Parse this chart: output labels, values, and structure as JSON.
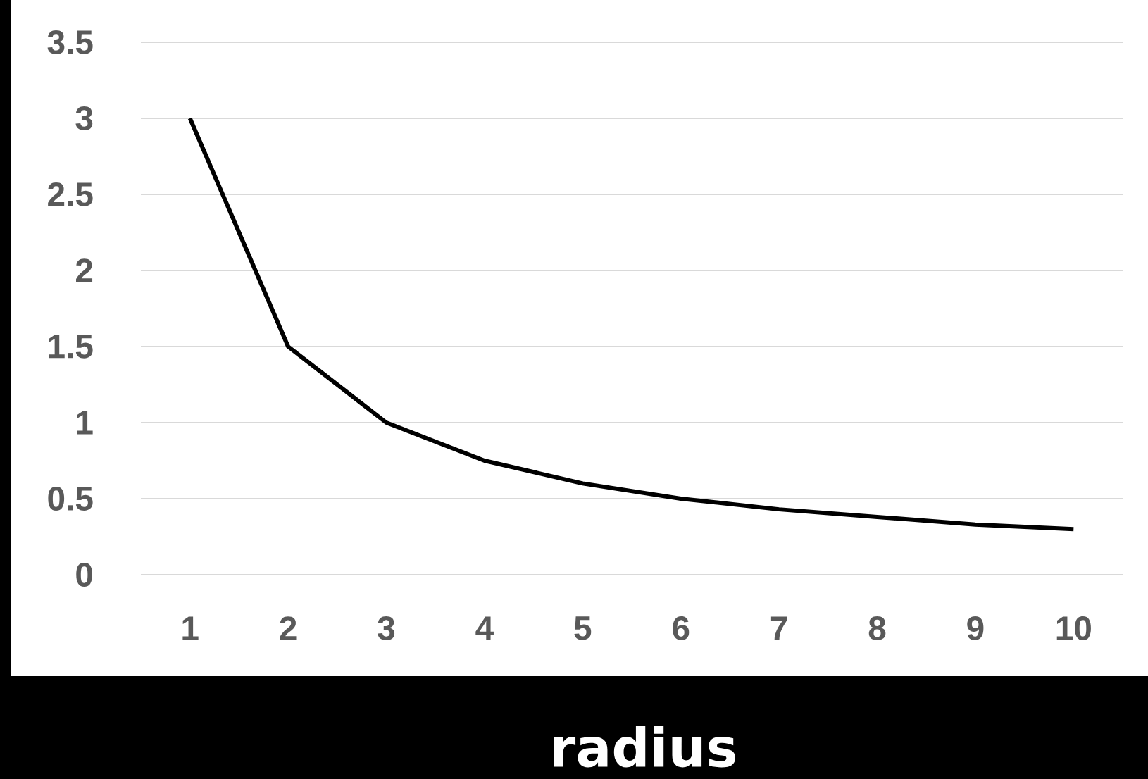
{
  "chart_data": {
    "type": "line",
    "xlabel": "radius",
    "categories": [
      "1",
      "2",
      "3",
      "4",
      "5",
      "6",
      "7",
      "8",
      "9",
      "10"
    ],
    "series": [
      {
        "color": "#000000",
        "values": [
          3,
          1.5,
          1,
          0.75,
          0.6,
          0.5,
          0.43,
          0.38,
          0.33,
          0.3
        ]
      }
    ],
    "ylim": [
      0,
      3.5
    ],
    "yticks": [
      0,
      0.5,
      1,
      1.5,
      2,
      2.5,
      3,
      3.5
    ],
    "grid": "y"
  }
}
